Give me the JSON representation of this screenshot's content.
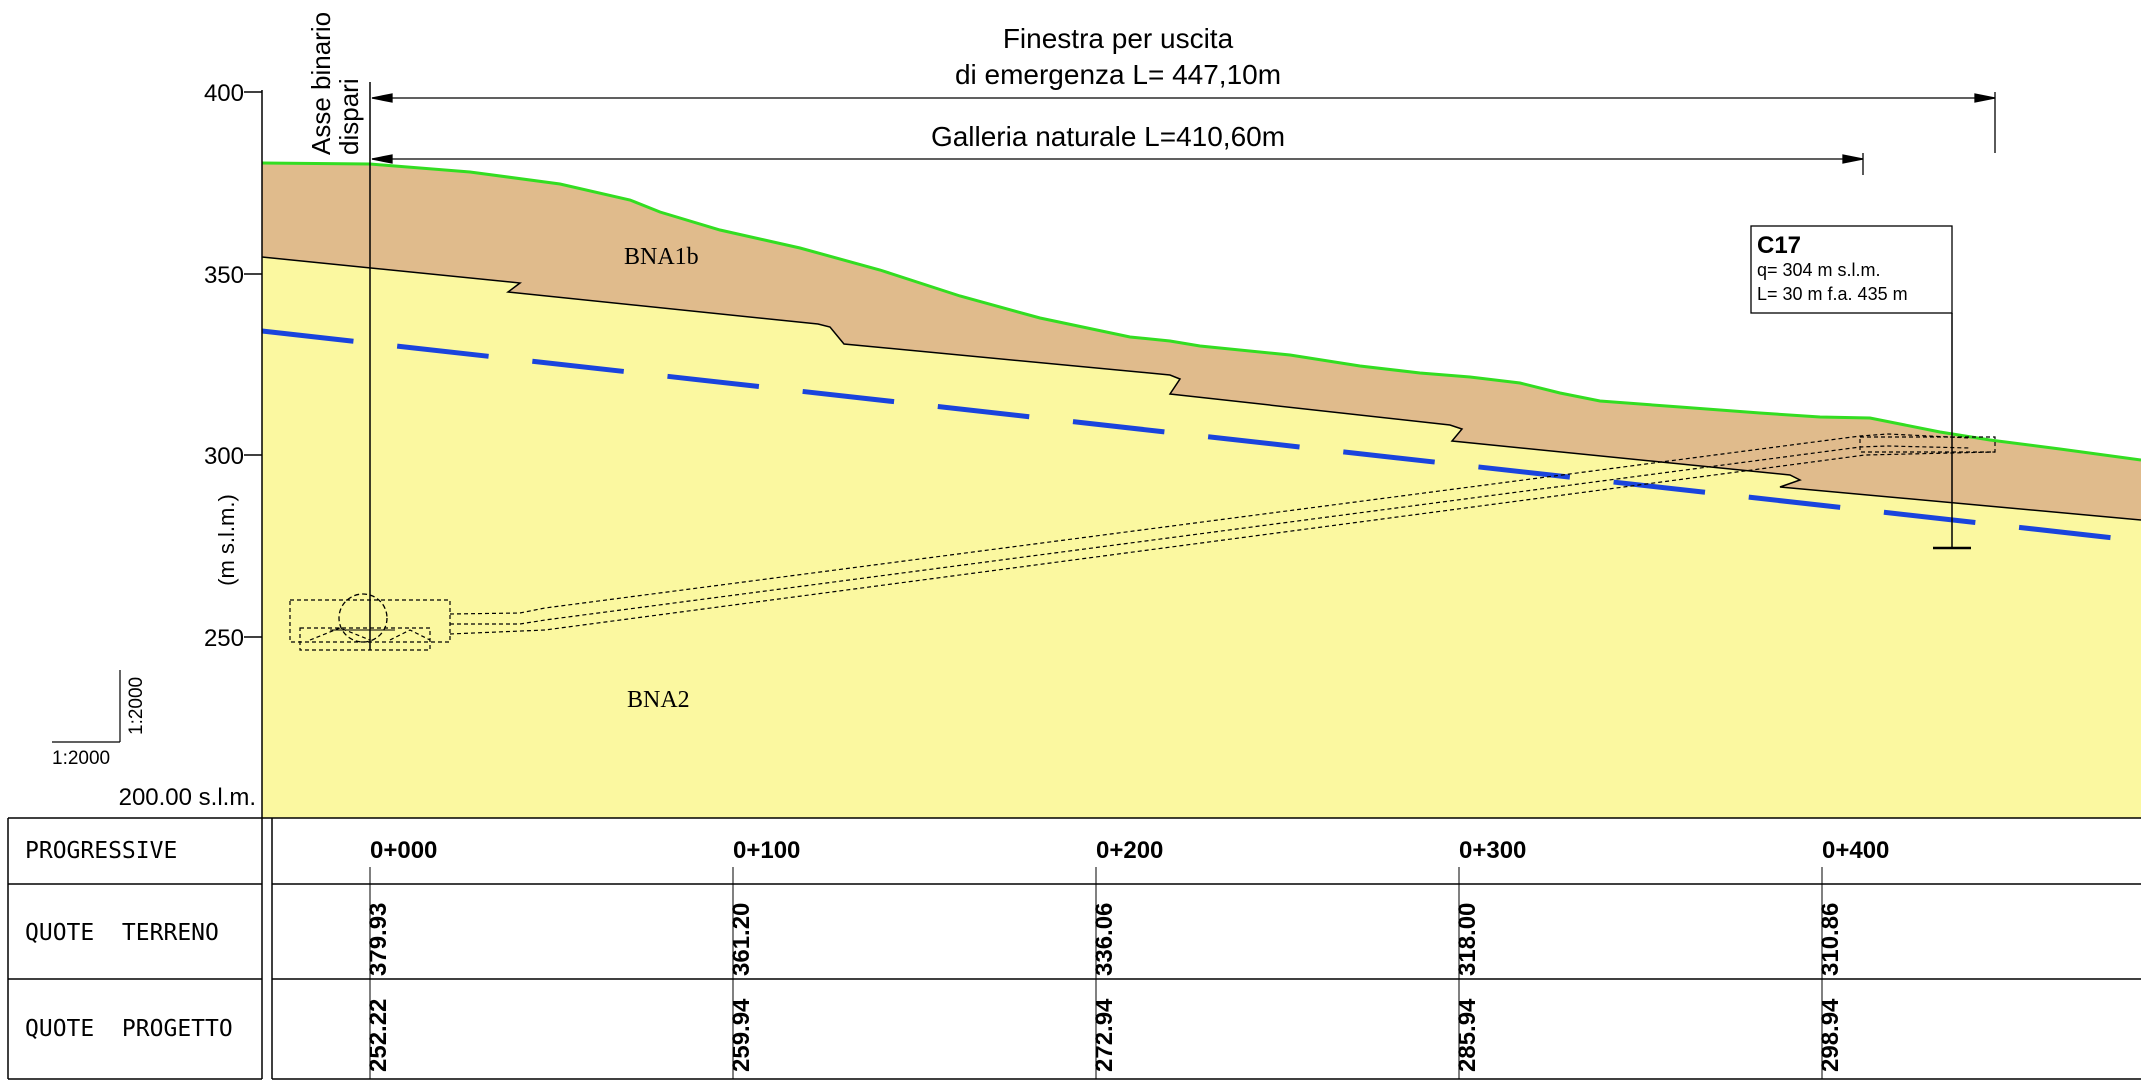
{
  "dimensions": {
    "finestra_line1": "Finestra per uscita",
    "finestra_line2": "di emergenza L= 447,10m",
    "galleria": "Galleria naturale L=410,60m"
  },
  "asse": {
    "line1": "Asse binario",
    "line2": "dispari"
  },
  "axis": {
    "unit_label": "(m s.l.m.)",
    "ticks": [
      "400",
      "350",
      "300",
      "250"
    ],
    "base_label": "200.00 s.l.m."
  },
  "scale": {
    "horizontal": "1:2000",
    "vertical": "1:2000"
  },
  "layers": {
    "upper": "BNA1b",
    "lower": "BNA2"
  },
  "borehole": {
    "name": "C17",
    "line1": "q= 304 m s.l.m.",
    "line2": "L= 30 m f.a. 435 m"
  },
  "colors": {
    "upper_layer": "#e0bb8c",
    "lower_layer": "#fbf8a0",
    "ground_line": "#33dd22",
    "water_table": "#1a44dd"
  },
  "table": {
    "row_labels": [
      "PROGRESSIVE",
      "QUOTE  TERRENO",
      "QUOTE  PROGETTO"
    ],
    "stations": [
      "0+000",
      "0+100",
      "0+200",
      "0+300",
      "0+400"
    ],
    "terrain": [
      "379.93",
      "361.20",
      "336.06",
      "318.00",
      "310.86"
    ],
    "project": [
      "252.22",
      "259.94",
      "272.94",
      "285.94",
      "298.94"
    ]
  }
}
